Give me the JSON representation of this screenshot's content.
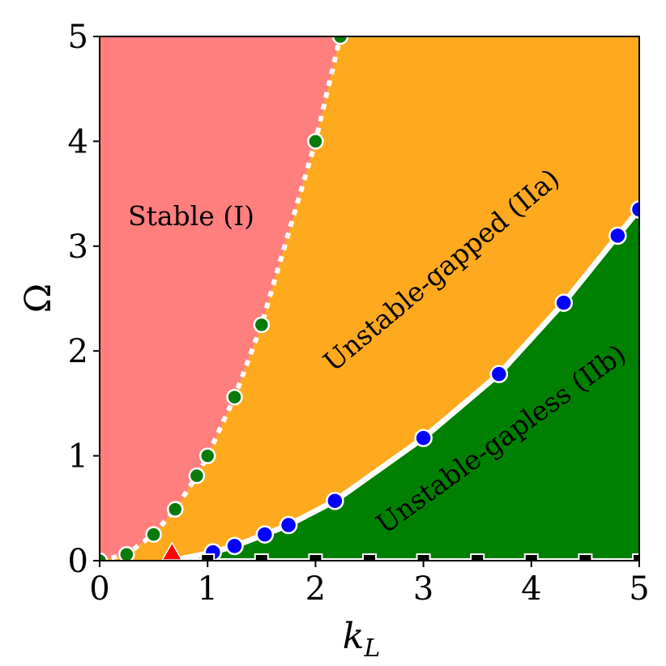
{
  "chart_data": {
    "type": "scatter",
    "title": "",
    "xlabel": "k",
    "xlabel_sub": "L",
    "ylabel": "Ω",
    "xlim": [
      0,
      5
    ],
    "ylim": [
      0,
      5
    ],
    "xticks": [
      "0",
      "1",
      "2",
      "3",
      "4",
      "5"
    ],
    "yticks": [
      "0",
      "1",
      "2",
      "3",
      "4",
      "5"
    ],
    "grid": false,
    "regions": [
      {
        "label": "Stable (I)",
        "color": "#ff7f7f"
      },
      {
        "label": "Unstable-gapped (IIa)",
        "color": "#ffa91f"
      },
      {
        "label": "Unstable-gapless (IIb)",
        "color": "#008000"
      }
    ],
    "series": [
      {
        "marker": "green-circle",
        "color": "#0a7a0a",
        "line": "dotted-white",
        "x": [
          0,
          0.25,
          0.5,
          0.7,
          0.9,
          1.0,
          1.25,
          1.5,
          2.0,
          2.23
        ],
        "y": [
          0,
          0.06,
          0.25,
          0.49,
          0.81,
          1.0,
          1.56,
          2.25,
          4.0,
          5.0
        ]
      },
      {
        "marker": "blue-circle",
        "color": "#0000ff",
        "line": "solid-white",
        "x": [
          0.67,
          1.05,
          1.25,
          1.53,
          1.75,
          2.18,
          3.0,
          3.7,
          4.3,
          4.8,
          5.0
        ],
        "y": [
          0,
          0.08,
          0.14,
          0.25,
          0.34,
          0.57,
          1.17,
          1.78,
          2.46,
          3.1,
          3.35
        ]
      },
      {
        "marker": "black-square",
        "color": "#000000",
        "line": "solid-white",
        "x": [
          1.0,
          1.5,
          2.0,
          2.5,
          3.0,
          3.5,
          4.0,
          4.5,
          5.0
        ],
        "y": [
          0,
          0,
          0,
          0,
          0,
          0,
          0,
          0,
          0
        ]
      },
      {
        "marker": "red-triangle",
        "color": "#ff0000",
        "x": [
          0.67
        ],
        "y": [
          0
        ]
      }
    ]
  }
}
